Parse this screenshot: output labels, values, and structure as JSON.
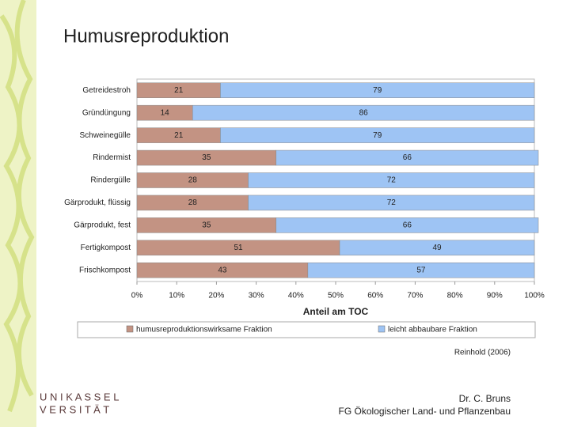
{
  "slide": {
    "title": "Humusreproduktion",
    "source": "Reinhold (2006)",
    "author": "Dr. C. Bruns",
    "department": "FG Ökologischer Land- und Pflanzenbau",
    "logo_line1": "U N I K A S S E L",
    "logo_line2": "V E R S I T Ä T"
  },
  "chart_data": {
    "type": "stacked-bar-horizontal",
    "x_label": "Anteil am TOC",
    "categories": [
      "Getreidestroh",
      "Gründüngung",
      "Schweinegülle",
      "Rindermist",
      "Rindergülle",
      "Gärprodukt, flüssig",
      "Gärprodukt, fest",
      "Fertigkompost",
      "Frischkompost"
    ],
    "series": [
      {
        "name": "humusreproduktionswirksame Fraktion",
        "color": "#c39383",
        "values": [
          21,
          14,
          21,
          35,
          28,
          28,
          35,
          51,
          43
        ]
      },
      {
        "name": "leicht abbaubare Fraktion",
        "color": "#9ec4f4",
        "values": [
          79,
          86,
          79,
          66,
          72,
          72,
          66,
          49,
          57
        ]
      }
    ],
    "xlim": [
      0,
      100
    ],
    "xticks": [
      {
        "value": 0,
        "label": "0%"
      },
      {
        "value": 10,
        "label": "10%"
      },
      {
        "value": 20,
        "label": "20%"
      },
      {
        "value": 30,
        "label": "30%"
      },
      {
        "value": 40,
        "label": "40%"
      },
      {
        "value": 50,
        "label": "50%"
      },
      {
        "value": 60,
        "label": "60%"
      },
      {
        "value": 70,
        "label": "70%"
      },
      {
        "value": 80,
        "label": "80%"
      },
      {
        "value": 90,
        "label": "90%"
      },
      {
        "value": 100,
        "label": "100%"
      }
    ],
    "grid": false,
    "legend": "bottom"
  }
}
